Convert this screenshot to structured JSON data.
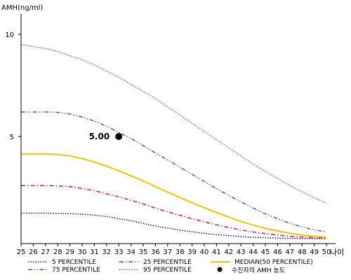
{
  "chart_data": {
    "type": "line",
    "title": "",
    "ylabel": "AMH(ng/ml)",
    "xlabel": "",
    "x_unit": "나이",
    "x": [
      25,
      26,
      27,
      28,
      29,
      30,
      31,
      32,
      33,
      34,
      35,
      36,
      37,
      38,
      39,
      40,
      41,
      42,
      43,
      44,
      45,
      46,
      47,
      48,
      49,
      50
    ],
    "xlim": [
      25,
      50
    ],
    "ylim": [
      0,
      11
    ],
    "y_ticks": [
      5,
      10
    ],
    "grid": false,
    "legend_position": "bottom",
    "series": [
      {
        "name": "5 PERCENTILE",
        "color": "#0c0c5c",
        "dash": "dotted",
        "values": [
          1.25,
          1.25,
          1.25,
          1.24,
          1.22,
          1.2,
          1.15,
          1.08,
          0.98,
          0.88,
          0.75,
          0.62,
          0.52,
          0.42,
          0.34,
          0.26,
          0.2,
          0.15,
          0.1,
          0.07,
          0.05,
          0.03,
          0.02,
          0.01,
          0.01,
          0.0
        ]
      },
      {
        "name": "25 PERCENTILE",
        "color": "#d4127a",
        "dash": "dash-dot",
        "values": [
          2.6,
          2.6,
          2.6,
          2.58,
          2.55,
          2.45,
          2.35,
          2.2,
          2.05,
          1.88,
          1.7,
          1.5,
          1.32,
          1.15,
          0.98,
          0.83,
          0.68,
          0.55,
          0.43,
          0.33,
          0.25,
          0.18,
          0.12,
          0.08,
          0.05,
          0.03
        ]
      },
      {
        "name": "MEDIAN(50 PERCENTILE)",
        "color": "#f2c400",
        "dash": "solid",
        "values": [
          4.15,
          4.15,
          4.15,
          4.12,
          4.05,
          3.92,
          3.75,
          3.55,
          3.32,
          3.08,
          2.82,
          2.55,
          2.28,
          2.02,
          1.76,
          1.52,
          1.28,
          1.06,
          0.85,
          0.67,
          0.51,
          0.38,
          0.27,
          0.18,
          0.12,
          0.08
        ]
      },
      {
        "name": "75 PERCENTILE",
        "color": "#3a5fc8",
        "dash": "dash-dot-dot",
        "values": [
          6.2,
          6.2,
          6.2,
          6.18,
          6.1,
          5.95,
          5.75,
          5.5,
          5.2,
          4.9,
          4.55,
          4.2,
          3.85,
          3.5,
          3.15,
          2.8,
          2.45,
          2.12,
          1.8,
          1.5,
          1.22,
          0.98,
          0.76,
          0.58,
          0.44,
          0.34
        ]
      },
      {
        "name": "95 PERCENTILE",
        "color": "#3c8a50",
        "dash": "dotted",
        "values": [
          9.5,
          9.4,
          9.3,
          9.15,
          8.95,
          8.75,
          8.5,
          8.2,
          7.9,
          7.55,
          7.2,
          6.85,
          6.45,
          6.05,
          5.65,
          5.25,
          4.85,
          4.45,
          4.05,
          3.65,
          3.3,
          2.95,
          2.6,
          2.3,
          2.0,
          1.75
        ]
      }
    ],
    "highlight": {
      "legend": "수진자의 AMH 농도",
      "x": 33,
      "y": 5.0,
      "label": "5.00",
      "color": "#000000"
    }
  }
}
